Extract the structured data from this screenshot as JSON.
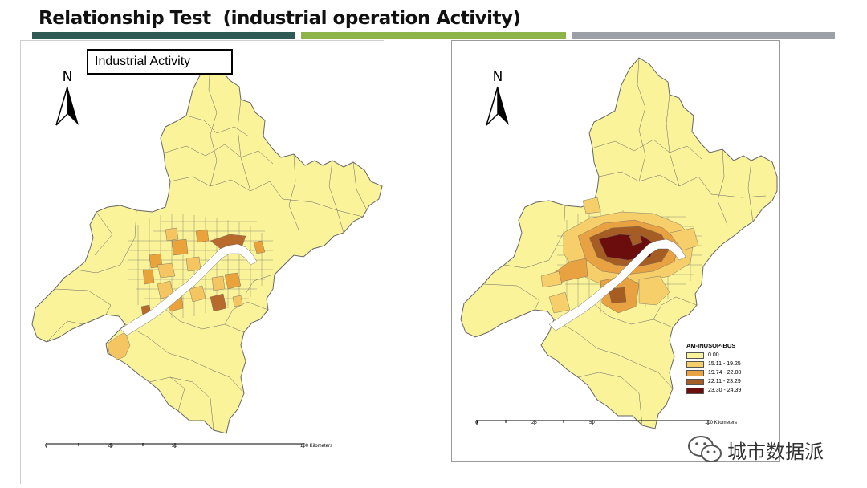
{
  "slide": {
    "title": "Relationship Test  (industrial operation Activity)",
    "bar_colors": [
      "#2f5a53",
      "#8db34a",
      "#9aa0a5"
    ]
  },
  "left_map": {
    "label": "Industrial Activity",
    "north": "N",
    "scale": {
      "ticks": [
        "0",
        "25",
        "50",
        "100 Kilometers"
      ]
    },
    "colors": {
      "base": "#faf39a",
      "light": "#f4c561",
      "mid": "#e9a33a",
      "dark": "#b86a2d",
      "border": "#666666",
      "river": "#ffffff"
    }
  },
  "right_map": {
    "north": "N",
    "legend": {
      "title": "AM-INUSOP-BUS",
      "items": [
        {
          "label": "0.00",
          "color": "#fbf49d"
        },
        {
          "label": "15.11 - 19.25",
          "color": "#f6cf6a"
        },
        {
          "label": "19.74 - 22.08",
          "color": "#e8a241"
        },
        {
          "label": "22.11 - 23.29",
          "color": "#a65d24"
        },
        {
          "label": "23.30 - 24.39",
          "color": "#6b0d0d"
        }
      ]
    },
    "scale": {
      "ticks": [
        "0",
        "25",
        "50",
        "100 Kilometers"
      ]
    }
  },
  "watermark": {
    "text": "城市数据派",
    "icon": "wechat-icon"
  }
}
